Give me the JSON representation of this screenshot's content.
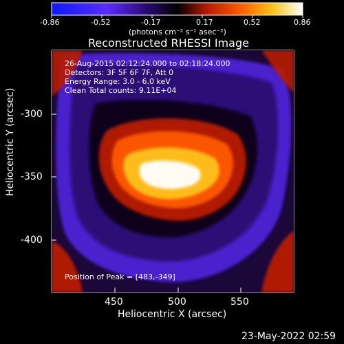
{
  "colorbar": {
    "ticks": [
      "-0.86",
      "-0.52",
      "-0.17",
      "0.17",
      "0.52",
      "0.86"
    ],
    "unit_label": "(photons cm⁻² s⁻¹ asec⁻²)",
    "colors": [
      "#0b1aff",
      "#5a2cff",
      "#2a0a6e",
      "#000000",
      "#b81a00",
      "#ff5a00",
      "#ffc21a",
      "#ffffff"
    ]
  },
  "plot": {
    "title": "Reconstructed RHESSI Image",
    "info": {
      "time_range": "26-Aug-2015 02:12:24.000 to 02:18:24.000",
      "detectors": "Detectors: 3F 5F 6F 7F, Att 0",
      "energy_range": "Energy Range: 3.0 - 6.0 keV",
      "clean": "Clean    Total counts: 9.11E+04"
    },
    "peak_note": "Position of Peak = [483,-349]",
    "x_axis": {
      "label": "Heliocentric X (arcsec)",
      "ticks": [
        "450",
        "500",
        "550"
      ]
    },
    "y_axis": {
      "label": "Heliocentric Y (arcsec)",
      "ticks": [
        "-300",
        "-350",
        "-400"
      ]
    }
  },
  "footer": {
    "timestamp": "23-May-2022 02:59"
  }
}
